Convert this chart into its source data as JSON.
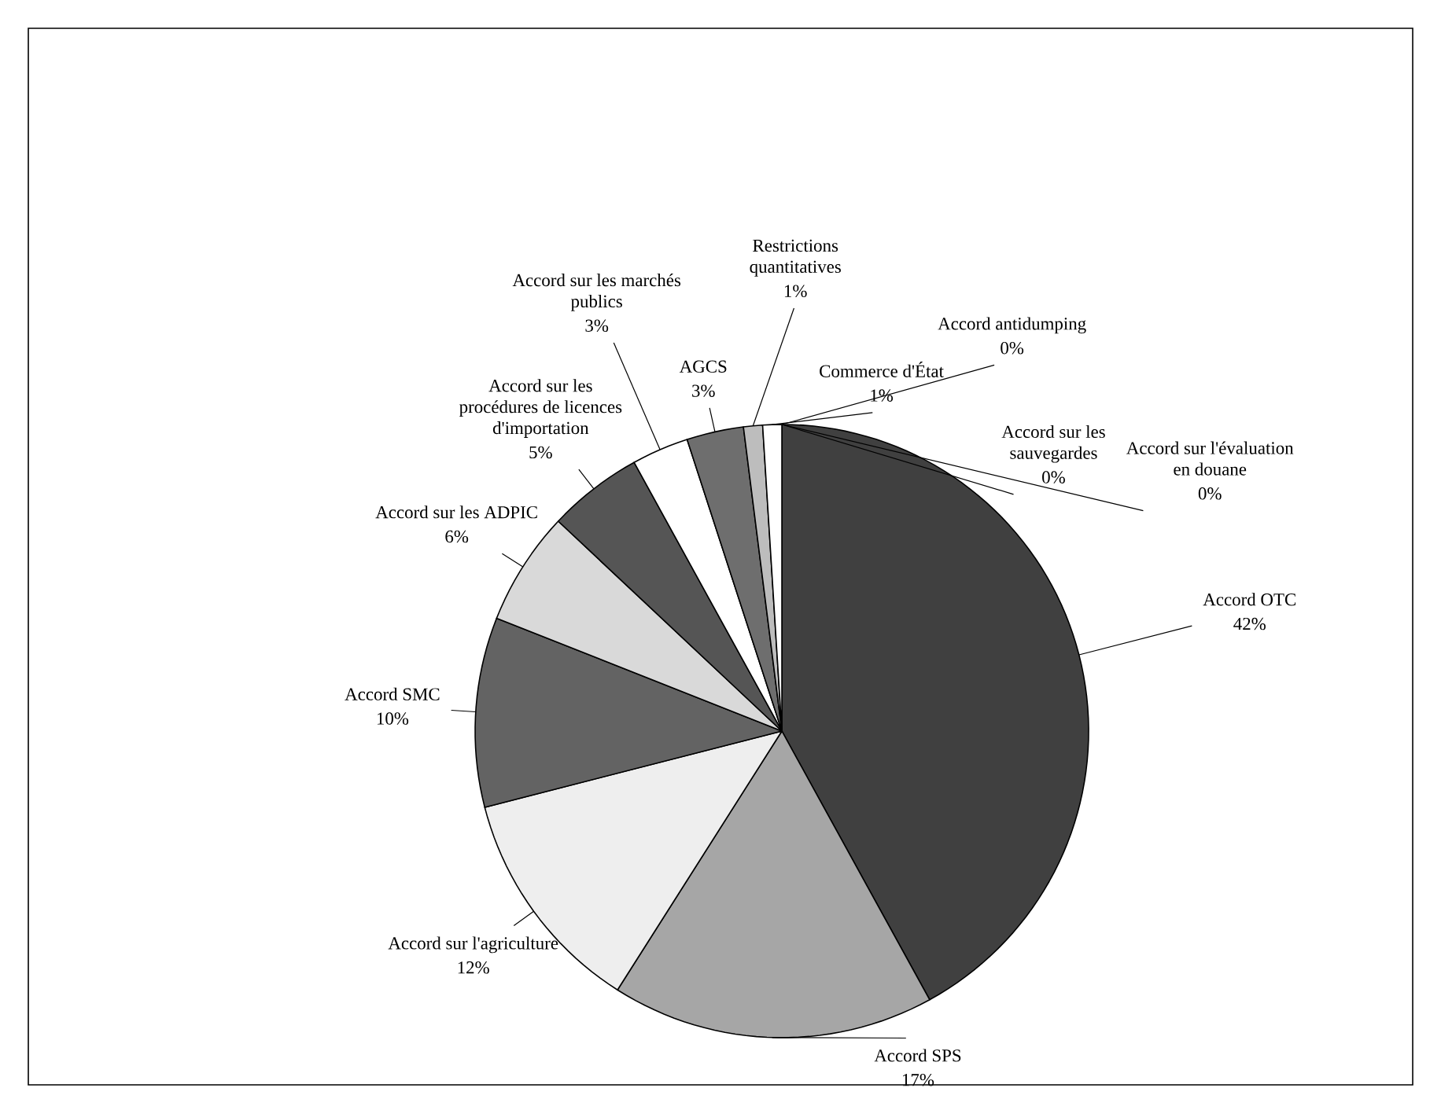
{
  "chart_data": {
    "type": "pie",
    "categories": [
      "Accord OTC",
      "Accord SPS",
      "Accord sur l'agriculture",
      "Accord SMC",
      "Accord sur les ADPIC",
      "Accord sur les procédures de licences d'importation",
      "Accord sur les marchés publics",
      "AGCS",
      "Restrictions quantitatives",
      "Commerce d'État",
      "Accord antidumping",
      "Accord sur les sauvegardes",
      "Accord sur l'évaluation en douane"
    ],
    "values": [
      42,
      17,
      12,
      10,
      6,
      5,
      3,
      3,
      1,
      1,
      0,
      0,
      0
    ],
    "colors": [
      "#404040",
      "#a6a6a6",
      "#eeeeee",
      "#636363",
      "#d9d9d9",
      "#555555",
      "#ffffff",
      "#6e6e6e",
      "#bdbdbd",
      "#ffffff",
      "#e0e0e0",
      "#ffffff",
      "#000000"
    ],
    "value_labels": [
      "42%",
      "17%",
      "12%",
      "10%",
      "6%",
      "5%",
      "3%",
      "3%",
      "1%",
      "1%",
      "0%",
      "0%",
      "0%"
    ]
  }
}
